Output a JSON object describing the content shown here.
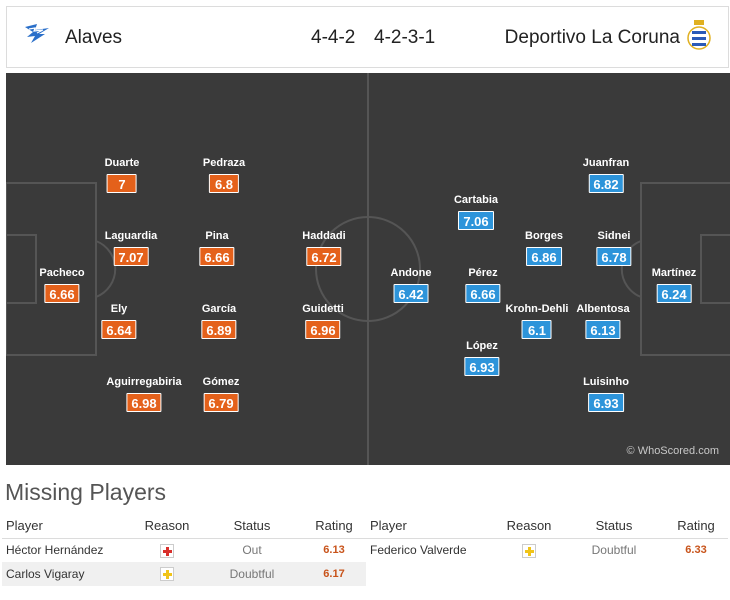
{
  "header": {
    "home_team": "Alaves",
    "away_team": "Deportivo La Coruna",
    "home_formation": "4-4-2",
    "away_formation": "4-2-3-1",
    "home_logo_icon": "alaves-crest-icon",
    "away_logo_icon": "deportivo-crest-icon"
  },
  "colors": {
    "home": "#e4611b",
    "away": "#2d94da",
    "pitch": "#3a3a3a"
  },
  "pitch": {
    "watermark": "© WhoScored.com",
    "home_players": [
      {
        "name": "Pacheco",
        "rating": "6.66"
      },
      {
        "name": "Duarte",
        "rating": "7"
      },
      {
        "name": "Laguardia",
        "rating": "7.07"
      },
      {
        "name": "Ely",
        "rating": "6.64"
      },
      {
        "name": "Aguirregabiria",
        "rating": "6.98"
      },
      {
        "name": "Pedraza",
        "rating": "6.8"
      },
      {
        "name": "Pina",
        "rating": "6.66"
      },
      {
        "name": "García",
        "rating": "6.89"
      },
      {
        "name": "Gómez",
        "rating": "6.79"
      },
      {
        "name": "Haddadi",
        "rating": "6.72"
      },
      {
        "name": "Guidetti",
        "rating": "6.96"
      }
    ],
    "away_players": [
      {
        "name": "Andone",
        "rating": "6.42"
      },
      {
        "name": "Cartabia",
        "rating": "7.06"
      },
      {
        "name": "Pérez",
        "rating": "6.66"
      },
      {
        "name": "López",
        "rating": "6.93"
      },
      {
        "name": "Borges",
        "rating": "6.86"
      },
      {
        "name": "Krohn-Dehli",
        "rating": "6.1"
      },
      {
        "name": "Juanfran",
        "rating": "6.82"
      },
      {
        "name": "Sidnei",
        "rating": "6.78"
      },
      {
        "name": "Albentosa",
        "rating": "6.13"
      },
      {
        "name": "Luisinho",
        "rating": "6.93"
      },
      {
        "name": "Martínez",
        "rating": "6.24"
      }
    ]
  },
  "missing": {
    "title": "Missing Players",
    "headers": {
      "player": "Player",
      "reason": "Reason",
      "status": "Status",
      "rating": "Rating"
    },
    "home": [
      {
        "player": "Héctor Hernández",
        "reason_icon": "injury-icon",
        "status": "Out",
        "rating": "6.13"
      },
      {
        "player": "Carlos Vigaray",
        "reason_icon": "doubtful-icon",
        "status": "Doubtful",
        "rating": "6.17"
      }
    ],
    "away": [
      {
        "player": "Federico Valverde",
        "reason_icon": "doubtful-icon",
        "status": "Doubtful",
        "rating": "6.33"
      }
    ]
  }
}
